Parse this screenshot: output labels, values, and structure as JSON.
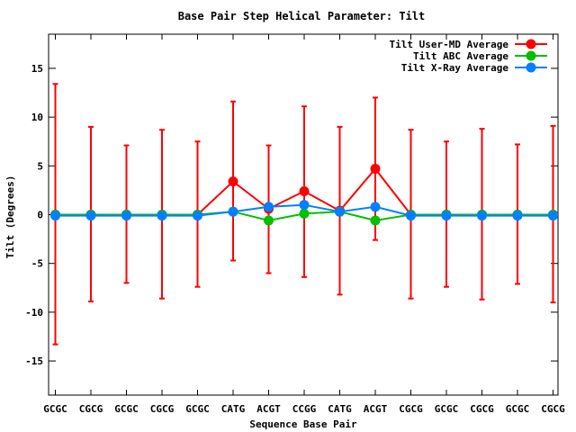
{
  "chart_data": {
    "type": "line",
    "title": "Base Pair Step Helical Parameter: Tilt",
    "xlabel": "Sequence Base Pair",
    "ylabel": "Tilt (Degrees)",
    "categories": [
      "GCGC",
      "CGCG",
      "GCGC",
      "CGCG",
      "GCGC",
      "CATG",
      "ACGT",
      "CCGG",
      "CATG",
      "ACGT",
      "CGCG",
      "GCGC",
      "CGCG",
      "GCGC",
      "CGCG"
    ],
    "ylim": [
      -18.5,
      18.5
    ],
    "yticks": [
      -15,
      -10,
      -5,
      0,
      5,
      10,
      15
    ],
    "grid": false,
    "legend_position": "top-right",
    "series": [
      {
        "name": "Tilt User-MD Average",
        "color": "#ff0000",
        "values": [
          0.0,
          0.0,
          0.0,
          0.0,
          0.0,
          3.4,
          0.6,
          2.4,
          0.4,
          4.7,
          0.0,
          0.0,
          0.0,
          0.0,
          0.0
        ],
        "error_low": [
          -13.3,
          -8.9,
          -7.0,
          -8.6,
          -7.4,
          -4.7,
          -6.0,
          -6.4,
          -8.2,
          -2.6,
          -8.6,
          -7.4,
          -8.7,
          -7.1,
          -9.0
        ],
        "error_high": [
          13.4,
          9.0,
          7.1,
          8.7,
          7.5,
          11.6,
          7.1,
          11.1,
          9.0,
          12.0,
          8.7,
          7.5,
          8.8,
          7.2,
          9.1
        ]
      },
      {
        "name": "Tilt ABC Average",
        "color": "#00c000",
        "values": [
          0.0,
          0.0,
          0.0,
          0.0,
          0.0,
          0.3,
          -0.6,
          0.1,
          0.3,
          -0.6,
          0.0,
          0.0,
          0.0,
          0.0,
          0.0
        ]
      },
      {
        "name": "Tilt X-Ray Average",
        "color": "#0080ff",
        "values": [
          -0.1,
          -0.1,
          -0.1,
          -0.1,
          -0.1,
          0.3,
          0.8,
          1.0,
          0.3,
          0.8,
          -0.1,
          -0.1,
          -0.1,
          -0.1,
          -0.1
        ]
      }
    ]
  }
}
